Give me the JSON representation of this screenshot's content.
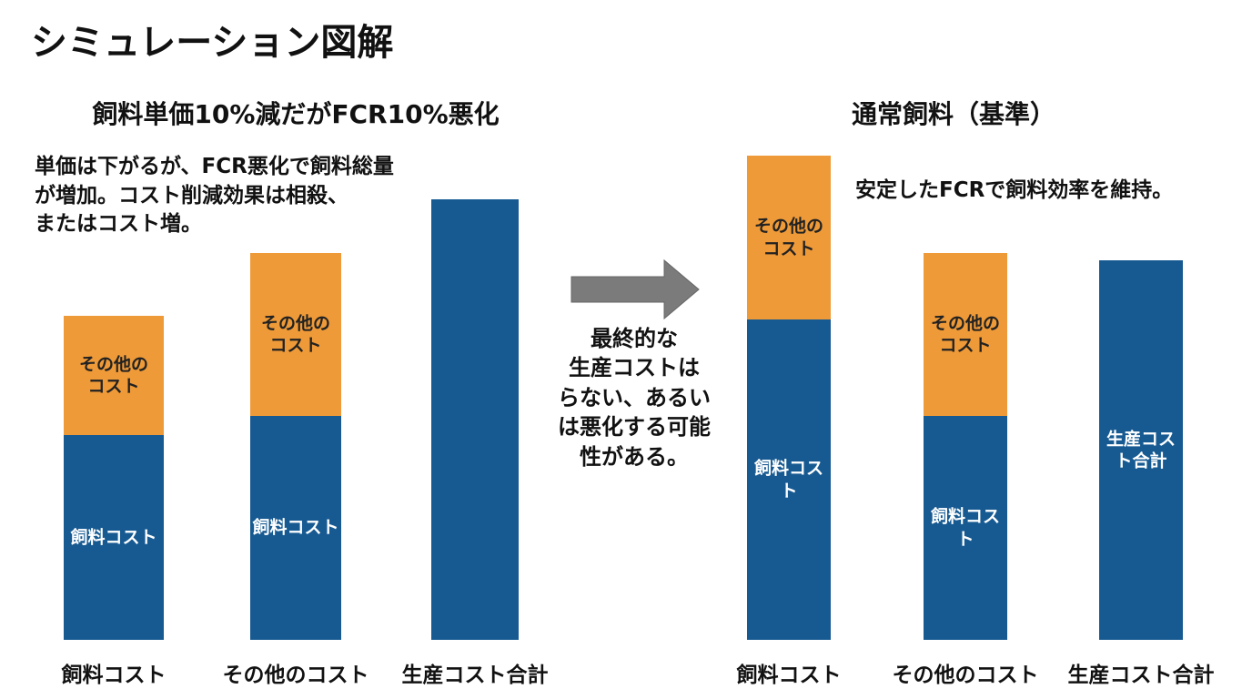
{
  "title": "シミュレーション図解",
  "arrow_text": "最終的な\n生産コストは\nらない、あるい\nは悪化する可能\n性がある。",
  "chart_data": [
    {
      "type": "bar",
      "stacked": true,
      "title": "飼料単価10%減だがFCR10%悪化",
      "annotation": "単価は下がるが、FCR悪化で飼料総量\nが増加。コスト削減効果は相殺、\nまたはコスト増。",
      "categories": [
        "飼料コスト",
        "その他のコスト",
        "生産コスト合計"
      ],
      "ylim": [
        0,
        540
      ],
      "series": [
        {
          "color": "#175a92",
          "values": [
            225,
            246,
            484
          ],
          "value_labels": [
            "飼料コスト",
            "飼料コスト",
            null
          ]
        },
        {
          "color": "#ef9a38",
          "values": [
            131,
            179,
            null
          ],
          "value_labels": [
            "その他の\nコスト",
            "その他の\nコスト",
            null
          ]
        }
      ]
    },
    {
      "type": "bar",
      "stacked": true,
      "title": "通常飼料（基準）",
      "annotation": "安定したFCRで飼料効率を維持。",
      "categories": [
        "飼料コスト",
        "その他のコスト",
        "生産コスト合計"
      ],
      "ylim": [
        0,
        540
      ],
      "series": [
        {
          "color": "#175a92",
          "values": [
            352,
            246,
            417
          ],
          "value_labels": [
            "飼料コスト",
            "飼料コスト",
            "生産コス\nト合計"
          ]
        },
        {
          "color": "#ef9a38",
          "values": [
            180,
            179,
            null
          ],
          "value_labels": [
            "その他の\nコスト",
            "その他の\nコスト",
            null
          ]
        }
      ]
    }
  ]
}
